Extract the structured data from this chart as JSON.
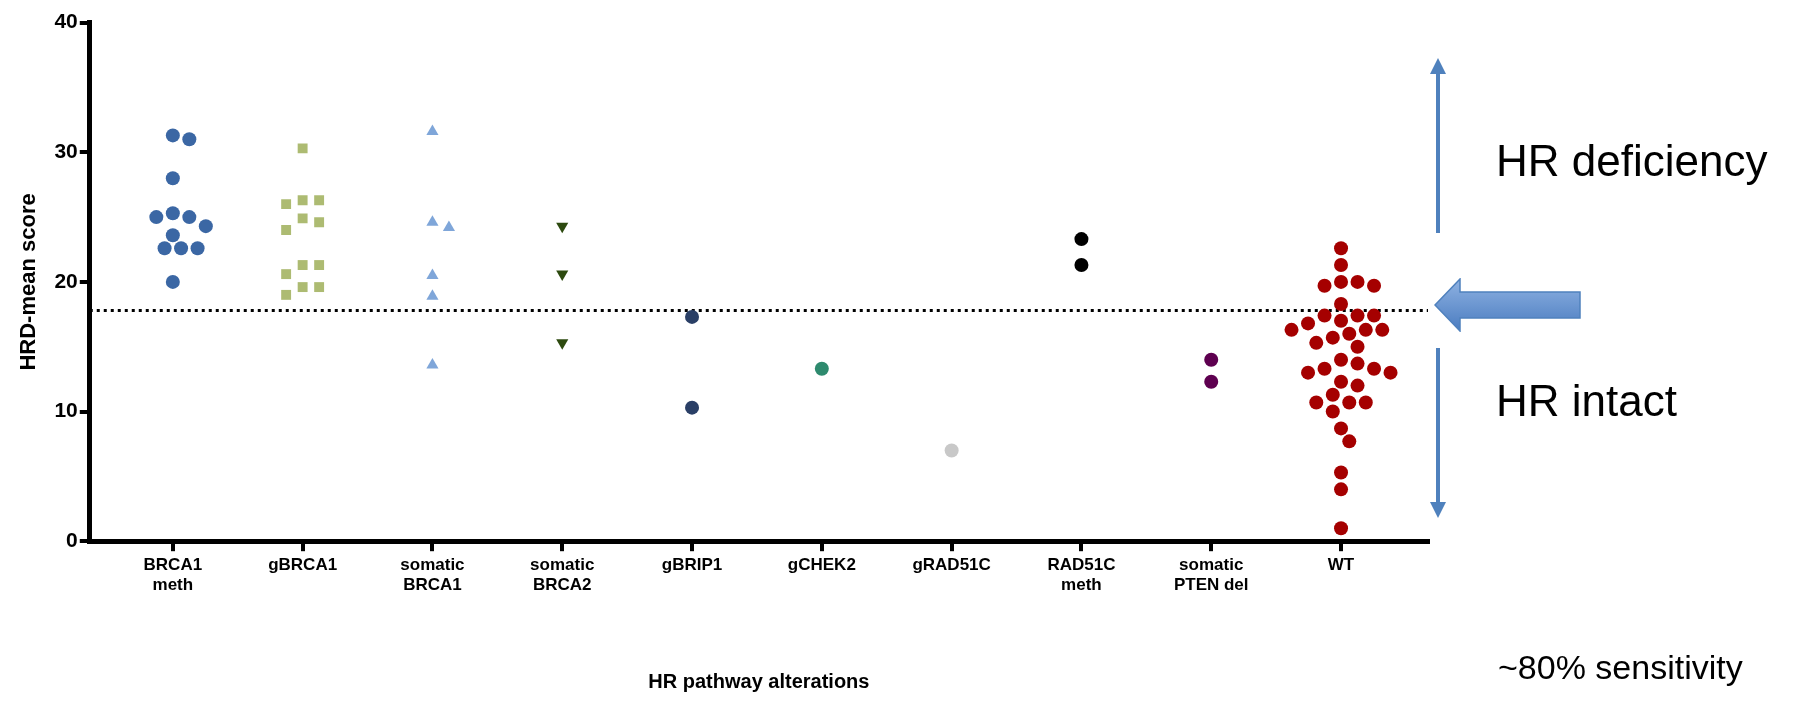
{
  "chart_data": {
    "type": "scatter",
    "xlabel": "HR pathway alterations",
    "ylabel": "HRD-mean score",
    "categories": [
      "BRCA1 meth",
      "gBRCA1",
      "somatic BRCA1",
      "somatic BRCA2",
      "gBRIP1",
      "gCHEK2",
      "gRAD51C",
      "RAD51C meth",
      "somatic PTEN del",
      "WT"
    ],
    "ylim": [
      0,
      40
    ],
    "yticks": [
      0,
      10,
      20,
      30,
      40
    ],
    "grid": false,
    "legend": false,
    "series": [
      {
        "color": "#3b67a4",
        "marker": "circle",
        "x": [
          "BRCA1 meth",
          "BRCA1 meth",
          "BRCA1 meth",
          "BRCA1 meth",
          "BRCA1 meth",
          "BRCA1 meth",
          "BRCA1 meth",
          "BRCA1 meth",
          "BRCA1 meth",
          "BRCA1 meth",
          "BRCA1 meth",
          "BRCA1 meth"
        ],
        "values": [
          31.3,
          31.0,
          28.0,
          25.3,
          25.0,
          25.0,
          24.3,
          23.6,
          22.6,
          22.6,
          22.6,
          20.0
        ]
      },
      {
        "color": "#adbb72",
        "marker": "square",
        "x": [
          "gBRCA1",
          "gBRCA1",
          "gBRCA1",
          "gBRCA1",
          "gBRCA1",
          "gBRCA1",
          "gBRCA1",
          "gBRCA1",
          "gBRCA1",
          "gBRCA1",
          "gBRCA1",
          "gBRCA1",
          "gBRCA1"
        ],
        "values": [
          30.3,
          26.3,
          26.3,
          26.0,
          24.9,
          24.6,
          24.0,
          21.3,
          21.3,
          20.6,
          19.6,
          19.6,
          19.0
        ]
      },
      {
        "color": "#7fa6d9",
        "marker": "triangle",
        "x": [
          "somatic BRCA1",
          "somatic BRCA1",
          "somatic BRCA1",
          "somatic BRCA1",
          "somatic BRCA1",
          "somatic BRCA1"
        ],
        "values": [
          31.6,
          24.6,
          24.2,
          20.5,
          18.9,
          13.6
        ]
      },
      {
        "color": "#2d4a0f",
        "marker": "triangle-down",
        "x": [
          "somatic BRCA2",
          "somatic BRCA2",
          "somatic BRCA2"
        ],
        "values": [
          24.3,
          20.6,
          15.3
        ]
      },
      {
        "color": "#2a3f66",
        "marker": "circle",
        "x": [
          "gBRIP1",
          "gBRIP1"
        ],
        "values": [
          17.3,
          10.3
        ]
      },
      {
        "color": "#2e8a6e",
        "marker": "circle",
        "x": [
          "gCHEK2"
        ],
        "values": [
          13.3
        ]
      },
      {
        "color": "#c8c8c8",
        "marker": "circle",
        "x": [
          "gRAD51C"
        ],
        "values": [
          7.0
        ]
      },
      {
        "color": "#000000",
        "marker": "circle",
        "x": [
          "RAD51C meth",
          "RAD51C meth"
        ],
        "values": [
          23.3,
          21.3
        ]
      },
      {
        "color": "#5e0050",
        "marker": "circle",
        "x": [
          "somatic PTEN del",
          "somatic PTEN del"
        ],
        "values": [
          14.0,
          12.3
        ]
      },
      {
        "color": "#a50000",
        "marker": "circle",
        "x": [
          "WT",
          "WT",
          "WT",
          "WT",
          "WT",
          "WT",
          "WT",
          "WT",
          "WT",
          "WT",
          "WT",
          "WT",
          "WT",
          "WT",
          "WT",
          "WT",
          "WT",
          "WT",
          "WT",
          "WT",
          "WT",
          "WT",
          "WT",
          "WT",
          "WT",
          "WT",
          "WT",
          "WT",
          "WT",
          "WT",
          "WT",
          "WT",
          "WT",
          "WT",
          "WT",
          "WT",
          "WT"
        ],
        "values": [
          22.6,
          21.3,
          20.0,
          20.0,
          19.7,
          19.7,
          18.3,
          17.4,
          17.4,
          17.4,
          17.0,
          16.8,
          16.3,
          16.3,
          16.3,
          16.0,
          15.7,
          15.3,
          15.0,
          14.0,
          13.7,
          13.3,
          13.3,
          13.0,
          13.0,
          12.3,
          12.0,
          11.3,
          10.7,
          10.7,
          10.7,
          10.0,
          8.7,
          7.7,
          5.3,
          4.0,
          1.0
        ]
      }
    ],
    "ref_lines": [
      {
        "axis": "y",
        "value": 17.8,
        "line_style": "dotted",
        "color": "#000000"
      }
    ],
    "annotations": [
      "HR deficiency",
      "HR intact",
      "~80% sensitivity"
    ]
  }
}
